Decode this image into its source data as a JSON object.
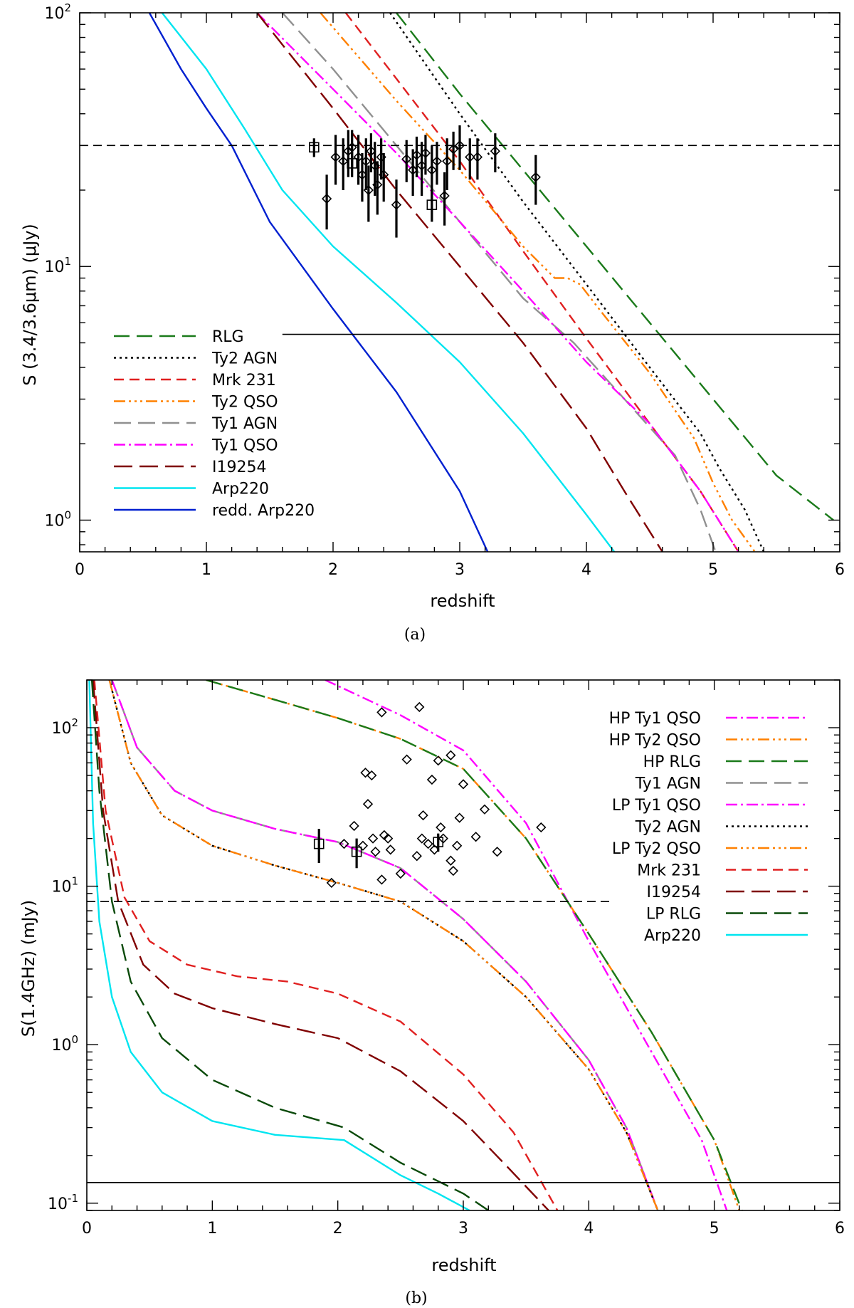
{
  "chart_data": [
    {
      "type": "line",
      "panel": "a",
      "caption": "(a)",
      "xlabel": "redshift",
      "ylabel": "S (3.4/3.6μm) (μJy)",
      "xlim": [
        0,
        6
      ],
      "ylim": [
        0.75,
        100
      ],
      "yscale": "log",
      "x_ticks": [
        "0",
        "1",
        "2",
        "3",
        "4",
        "5",
        "6"
      ],
      "y_ticks": [
        {
          "base": "10",
          "exp": "0",
          "value": 1
        },
        {
          "base": "10",
          "exp": "1",
          "value": 10
        },
        {
          "base": "10",
          "exp": "2",
          "value": 100
        }
      ],
      "legend_position": "bottom-left",
      "hlines": [
        {
          "y": 30,
          "style": "dashed",
          "xmin": 0,
          "xmax": 6
        },
        {
          "y": 5.4,
          "style": "solid",
          "xmin": 1.6,
          "xmax": 6
        }
      ],
      "series": [
        {
          "name": "RLG",
          "color": "#1a7a1a",
          "dash": "22,10",
          "x": [
            2.5,
            3.0,
            3.5,
            4.0,
            4.5,
            5.0,
            5.5,
            5.95
          ],
          "y": [
            100,
            48,
            24,
            12,
            6,
            3.0,
            1.5,
            1.0
          ]
        },
        {
          "name": "Ty2 AGN",
          "color": "#000000",
          "dash": "3,5",
          "x": [
            2.45,
            3.0,
            3.5,
            4.0,
            4.5,
            4.9,
            5.05,
            5.25,
            5.4
          ],
          "y": [
            100,
            40,
            18,
            8.5,
            4.0,
            2.2,
            1.6,
            1.1,
            0.75
          ]
        },
        {
          "name": "Mrk 231",
          "color": "#e02020",
          "dash": "14,8",
          "x": [
            2.1,
            2.5,
            3.0,
            3.5,
            4.0,
            4.5,
            4.9,
            5.2
          ],
          "y": [
            100,
            55,
            26,
            11.5,
            5.2,
            2.4,
            1.3,
            0.75
          ]
        },
        {
          "name": "Ty2 QSO",
          "color": "#ff8000",
          "dash": "16,5,3,5,3,5,3,5",
          "x": [
            1.9,
            2.5,
            3.0,
            3.5,
            3.75,
            3.85,
            3.95,
            4.1,
            4.5,
            4.85,
            5.0,
            5.15,
            5.33
          ],
          "y": [
            100,
            45,
            24,
            12,
            9.0,
            9.0,
            8.5,
            6.8,
            3.8,
            2.1,
            1.4,
            1.0,
            0.75
          ]
        },
        {
          "name": "Ty1 AGN",
          "color": "#909090",
          "dash": "24,10",
          "x": [
            1.6,
            2.0,
            2.5,
            3.0,
            3.5,
            3.9,
            4.3,
            4.7,
            4.9,
            5.02
          ],
          "y": [
            100,
            60,
            30,
            15,
            7.5,
            5.0,
            3.0,
            1.8,
            1.1,
            0.75
          ]
        },
        {
          "name": "Ty1 QSO",
          "color": "#ff00ff",
          "dash": "16,5,3,5",
          "x": [
            1.4,
            2.0,
            2.5,
            3.0,
            3.5,
            4.0,
            4.5,
            4.9,
            5.2
          ],
          "y": [
            100,
            50,
            28,
            15,
            8,
            4.2,
            2.4,
            1.3,
            0.75
          ]
        },
        {
          "name": "I19254",
          "color": "#800000",
          "dash": "26,10",
          "x": [
            1.4,
            2.0,
            2.5,
            3.0,
            3.5,
            4.0,
            4.3,
            4.6
          ],
          "y": [
            100,
            42,
            20,
            10,
            5.0,
            2.3,
            1.3,
            0.75
          ]
        },
        {
          "name": "Arp220",
          "color": "#00e5f0",
          "dash": "",
          "x": [
            0.65,
            1.0,
            1.3,
            1.6,
            2.0,
            2.5,
            3.0,
            3.5,
            4.0,
            4.22
          ],
          "y": [
            100,
            60,
            35,
            20,
            12,
            7.2,
            4.2,
            2.2,
            1.05,
            0.75
          ]
        },
        {
          "name": "redd. Arp220",
          "color": "#0020d0",
          "dash": "",
          "x": [
            0.55,
            0.8,
            1.0,
            1.2,
            1.5,
            2.0,
            2.5,
            3.0,
            3.22
          ],
          "y": [
            100,
            60,
            42,
            30,
            15,
            6.8,
            3.2,
            1.3,
            0.75
          ]
        }
      ],
      "points": {
        "diamonds": [
          {
            "x": 1.95,
            "y": 18.5,
            "err": 4.5
          },
          {
            "x": 2.02,
            "y": 27,
            "err": 6
          },
          {
            "x": 2.08,
            "y": 26,
            "err": 6
          },
          {
            "x": 2.12,
            "y": 28.5,
            "err": 6
          },
          {
            "x": 2.15,
            "y": 29.5,
            "err": 5
          },
          {
            "x": 2.2,
            "y": 27,
            "err": 6
          },
          {
            "x": 2.23,
            "y": 23,
            "err": 5
          },
          {
            "x": 2.26,
            "y": 26,
            "err": 6
          },
          {
            "x": 2.28,
            "y": 20,
            "err": 5
          },
          {
            "x": 2.3,
            "y": 28.5,
            "err": 5
          },
          {
            "x": 2.33,
            "y": 25,
            "err": 6
          },
          {
            "x": 2.35,
            "y": 21,
            "err": 5
          },
          {
            "x": 2.38,
            "y": 27,
            "err": 5
          },
          {
            "x": 2.4,
            "y": 23,
            "err": 5
          },
          {
            "x": 2.5,
            "y": 17.5,
            "err": 4.5
          },
          {
            "x": 2.58,
            "y": 26.5,
            "err": 5
          },
          {
            "x": 2.63,
            "y": 24,
            "err": 5
          },
          {
            "x": 2.66,
            "y": 27.5,
            "err": 5
          },
          {
            "x": 2.7,
            "y": 25,
            "err": 6
          },
          {
            "x": 2.73,
            "y": 28,
            "err": 5
          },
          {
            "x": 2.78,
            "y": 24,
            "err": 6
          },
          {
            "x": 2.82,
            "y": 26,
            "err": 5
          },
          {
            "x": 2.88,
            "y": 19,
            "err": 4.5
          },
          {
            "x": 2.9,
            "y": 26,
            "err": 6
          },
          {
            "x": 2.95,
            "y": 29,
            "err": 5
          },
          {
            "x": 3.0,
            "y": 30,
            "err": 6
          },
          {
            "x": 3.08,
            "y": 27,
            "err": 5
          },
          {
            "x": 3.14,
            "y": 27,
            "err": 5
          },
          {
            "x": 3.28,
            "y": 28.5,
            "err": 5
          },
          {
            "x": 3.6,
            "y": 22.5,
            "err": 5
          }
        ],
        "squares": [
          {
            "x": 1.85,
            "y": 29.5,
            "err": 2.5
          },
          {
            "x": 2.15,
            "y": 25.5,
            "err": 3
          },
          {
            "x": 2.78,
            "y": 17.5,
            "err": 2.5
          }
        ]
      }
    },
    {
      "type": "line",
      "panel": "b",
      "caption": "(b)",
      "xlabel": "redshift",
      "ylabel": "S(1.4GHz) (mJy)",
      "xlim": [
        0,
        6
      ],
      "ylim": [
        0.09,
        200
      ],
      "yscale": "log",
      "x_ticks": [
        "0",
        "1",
        "2",
        "3",
        "4",
        "5",
        "6"
      ],
      "y_ticks": [
        {
          "base": "10",
          "exp": "-1",
          "value": 0.1
        },
        {
          "base": "10",
          "exp": "0",
          "value": 1
        },
        {
          "base": "10",
          "exp": "1",
          "value": 10
        },
        {
          "base": "10",
          "exp": "2",
          "value": 100
        }
      ],
      "legend_position": "top-right",
      "hlines": [
        {
          "y": 8.0,
          "style": "dashed",
          "xmin": 0,
          "xmax": 4.2
        },
        {
          "y": 0.135,
          "style": "solid",
          "xmin": 0,
          "xmax": 6
        }
      ],
      "series": [
        {
          "name": "HP Ty1 QSO",
          "color": "#ff00ff",
          "dash": "16,5,3,5",
          "x": [
            1.9,
            2.5,
            3.0,
            3.5,
            4.0,
            4.5,
            4.9,
            5.1
          ],
          "y": [
            200,
            120,
            72,
            25,
            4.5,
            0.9,
            0.25,
            0.09
          ]
        },
        {
          "name": "HP Ty2 QSO",
          "color": "#ff8000",
          "dash": "16,5,3,5,3,5,3,5",
          "x": [
            0.95,
            1.5,
            2.0,
            2.5,
            3.0,
            3.5,
            4.0,
            4.5,
            5.0,
            5.2
          ],
          "y": [
            200,
            150,
            115,
            85,
            55,
            20,
            5.0,
            1.2,
            0.25,
            0.09
          ]
        },
        {
          "name": "HP RLG",
          "color": "#1a7a1a",
          "dash": "22,10",
          "x": [
            0.95,
            1.5,
            2.0,
            2.5,
            3.0,
            3.5,
            4.0,
            4.5,
            5.0,
            5.22
          ],
          "y": [
            200,
            150,
            115,
            85,
            55,
            20,
            5.0,
            1.2,
            0.25,
            0.09
          ]
        },
        {
          "name": "Ty1 AGN",
          "color": "#909090",
          "dash": "24,10",
          "x": [
            0.2,
            0.4,
            0.7,
            1.0,
            1.5,
            2.0,
            2.5,
            3.0,
            3.5,
            4.0,
            4.3,
            4.55
          ],
          "y": [
            200,
            75,
            40,
            30,
            23,
            19,
            13,
            6.2,
            2.5,
            0.8,
            0.3,
            0.09
          ]
        },
        {
          "name": "LP Ty1 QSO",
          "color": "#ff00ff",
          "dash": "16,5,3,5",
          "x": [
            0.2,
            0.4,
            0.7,
            1.0,
            1.5,
            2.0,
            2.5,
            3.0,
            3.5,
            4.0,
            4.3,
            4.55
          ],
          "y": [
            200,
            75,
            40,
            30,
            23,
            19,
            13,
            6.2,
            2.5,
            0.8,
            0.3,
            0.09
          ]
        },
        {
          "name": "Ty2 AGN",
          "color": "#000000",
          "dash": "3,5",
          "x": [
            0.18,
            0.35,
            0.6,
            1.0,
            1.5,
            2.0,
            2.5,
            3.0,
            3.5,
            4.0,
            4.3,
            4.55
          ],
          "y": [
            200,
            60,
            28,
            18,
            13.5,
            10.5,
            8,
            4.5,
            2.0,
            0.7,
            0.28,
            0.09
          ]
        },
        {
          "name": "LP Ty2 QSO",
          "color": "#ff8000",
          "dash": "16,5,3,5,3,5,3,5",
          "x": [
            0.18,
            0.35,
            0.6,
            1.0,
            1.5,
            2.0,
            2.5,
            3.0,
            3.5,
            4.0,
            4.3,
            4.55
          ],
          "y": [
            200,
            60,
            28,
            18,
            13.5,
            10.5,
            8,
            4.5,
            2.0,
            0.7,
            0.28,
            0.09
          ]
        },
        {
          "name": "Mrk 231",
          "color": "#e02020",
          "dash": "14,8",
          "x": [
            0.06,
            0.15,
            0.3,
            0.5,
            0.8,
            1.2,
            1.6,
            2.0,
            2.5,
            3.0,
            3.4,
            3.75
          ],
          "y": [
            200,
            30,
            8.5,
            4.5,
            3.2,
            2.7,
            2.5,
            2.1,
            1.4,
            0.65,
            0.28,
            0.09
          ]
        },
        {
          "name": "I19254",
          "color": "#800000",
          "dash": "26,10",
          "x": [
            0.05,
            0.13,
            0.25,
            0.45,
            0.7,
            1.0,
            1.5,
            2.0,
            2.5,
            3.0,
            3.35,
            3.68
          ],
          "y": [
            200,
            30,
            8,
            3.2,
            2.1,
            1.7,
            1.35,
            1.1,
            0.68,
            0.33,
            0.17,
            0.09
          ]
        },
        {
          "name": "LP RLG",
          "color": "#0a4a0a",
          "dash": "24,10",
          "x": [
            0.04,
            0.1,
            0.2,
            0.35,
            0.6,
            1.0,
            1.5,
            2.05,
            2.5,
            3.0,
            3.2
          ],
          "y": [
            200,
            40,
            8,
            2.5,
            1.1,
            0.6,
            0.4,
            0.3,
            0.18,
            0.115,
            0.09
          ]
        },
        {
          "name": "Arp220",
          "color": "#00e5f0",
          "dash": "",
          "x": [
            0.02,
            0.05,
            0.1,
            0.2,
            0.35,
            0.6,
            1.0,
            1.5,
            2.05,
            2.5,
            2.8,
            3.05
          ],
          "y": [
            200,
            25,
            6,
            2.0,
            0.9,
            0.5,
            0.33,
            0.27,
            0.25,
            0.15,
            0.115,
            0.09
          ]
        }
      ],
      "points": {
        "diamonds": [
          {
            "x": 1.95,
            "y": 10.5
          },
          {
            "x": 2.05,
            "y": 18.5
          },
          {
            "x": 2.13,
            "y": 24
          },
          {
            "x": 2.2,
            "y": 18
          },
          {
            "x": 2.22,
            "y": 52
          },
          {
            "x": 2.27,
            "y": 50
          },
          {
            "x": 2.24,
            "y": 33
          },
          {
            "x": 2.28,
            "y": 20
          },
          {
            "x": 2.3,
            "y": 16.5
          },
          {
            "x": 2.35,
            "y": 11
          },
          {
            "x": 2.37,
            "y": 21
          },
          {
            "x": 2.4,
            "y": 20
          },
          {
            "x": 2.42,
            "y": 17
          },
          {
            "x": 2.35,
            "y": 125
          },
          {
            "x": 2.5,
            "y": 12
          },
          {
            "x": 2.55,
            "y": 63
          },
          {
            "x": 2.63,
            "y": 15.5
          },
          {
            "x": 2.65,
            "y": 135
          },
          {
            "x": 2.67,
            "y": 20
          },
          {
            "x": 2.68,
            "y": 28
          },
          {
            "x": 2.72,
            "y": 18.5
          },
          {
            "x": 2.75,
            "y": 47
          },
          {
            "x": 2.77,
            "y": 17
          },
          {
            "x": 2.8,
            "y": 62
          },
          {
            "x": 2.82,
            "y": 23.5
          },
          {
            "x": 2.84,
            "y": 20
          },
          {
            "x": 2.9,
            "y": 67
          },
          {
            "x": 2.9,
            "y": 14.5
          },
          {
            "x": 2.92,
            "y": 12.5
          },
          {
            "x": 2.95,
            "y": 18
          },
          {
            "x": 2.97,
            "y": 27
          },
          {
            "x": 3.0,
            "y": 44
          },
          {
            "x": 3.1,
            "y": 20.5
          },
          {
            "x": 3.17,
            "y": 30.5
          },
          {
            "x": 3.27,
            "y": 16.5
          },
          {
            "x": 3.62,
            "y": 23.5
          }
        ],
        "squares": [
          {
            "x": 1.85,
            "y": 18.5,
            "err": 4.5
          },
          {
            "x": 2.15,
            "y": 16.5,
            "err": 3.5
          },
          {
            "x": 2.8,
            "y": 19,
            "err": 2.5
          }
        ]
      }
    }
  ]
}
